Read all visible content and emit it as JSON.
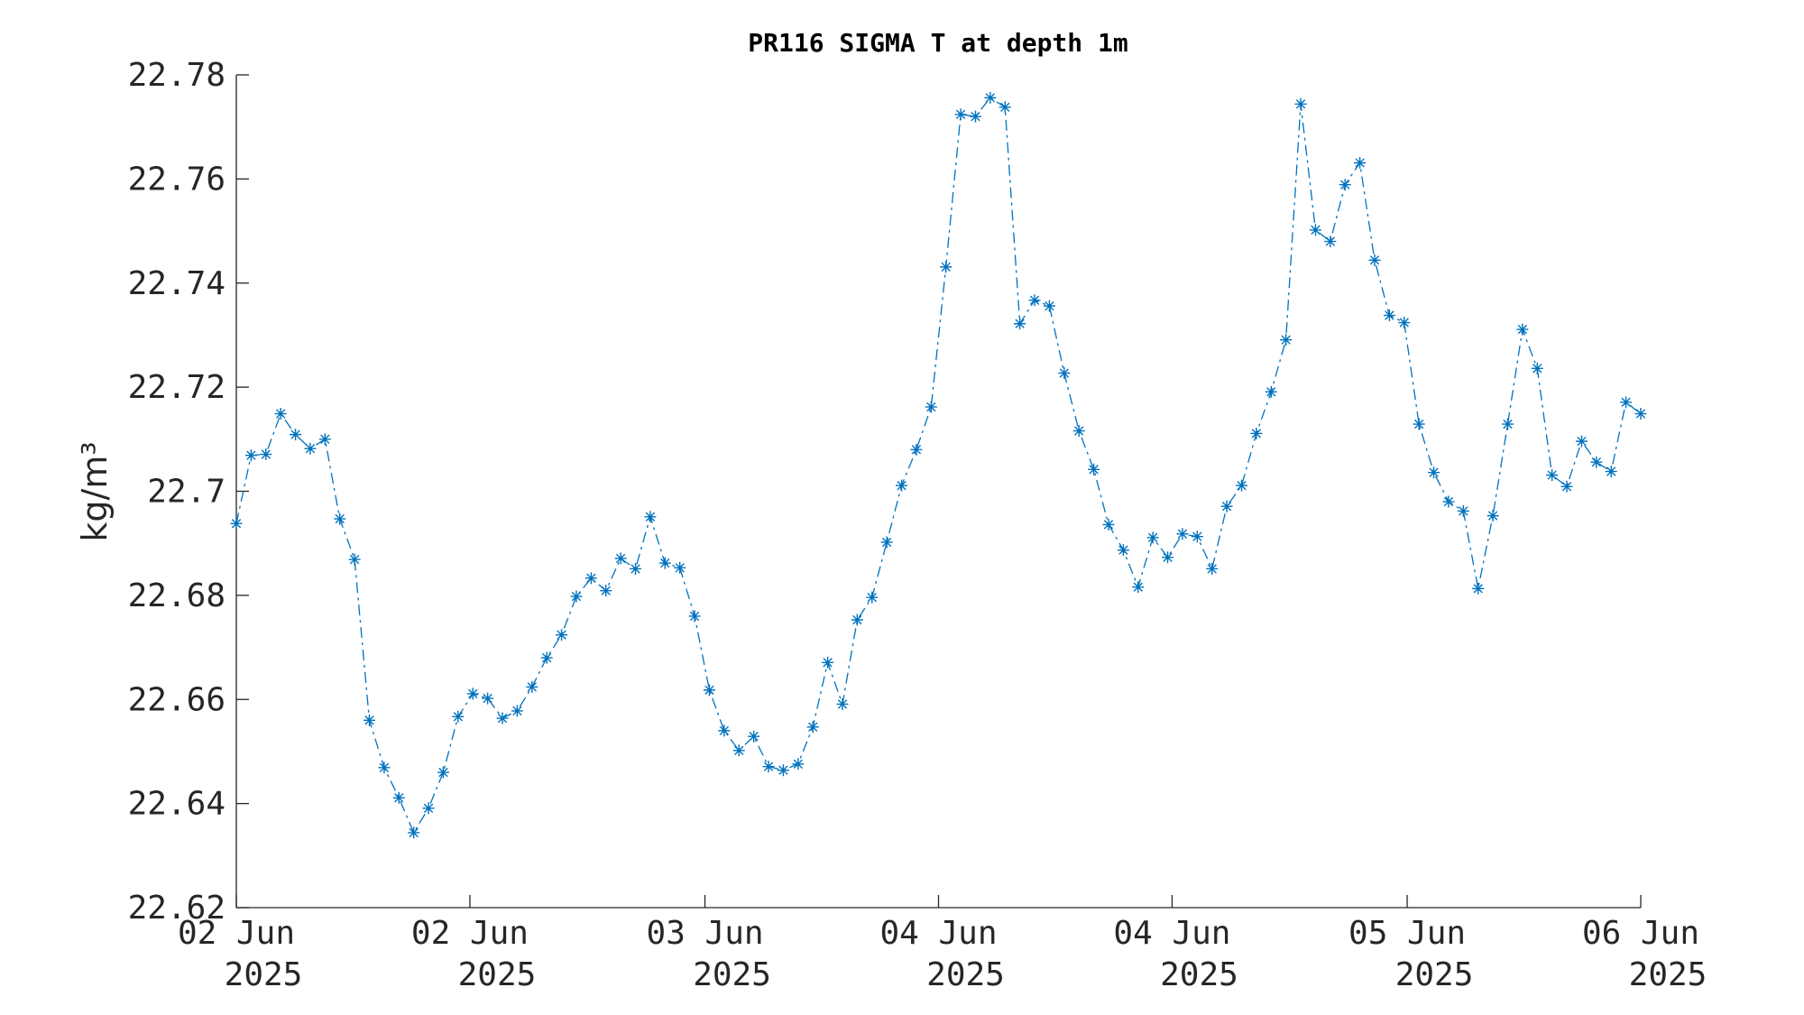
{
  "chart_data": {
    "type": "line",
    "title": "PR116 SIGMA T at depth 1m",
    "ylabel": "kg/m³",
    "x": [
      0,
      1,
      2,
      3,
      4,
      5,
      6,
      7,
      8,
      9,
      10,
      11,
      12,
      13,
      14,
      15,
      16,
      17,
      18,
      19,
      20,
      21,
      22,
      23,
      24,
      25,
      26,
      27,
      28,
      29,
      30,
      31,
      32,
      33,
      34,
      35,
      36,
      37,
      38,
      39,
      40,
      41,
      42,
      43,
      44,
      45,
      46,
      47,
      48,
      49,
      50,
      51,
      52,
      53,
      54,
      55,
      56,
      57,
      58,
      59,
      60,
      61,
      62,
      63,
      64,
      65,
      66,
      67,
      68,
      69,
      70,
      71,
      72,
      73,
      74,
      75,
      76,
      77,
      78,
      79,
      80,
      81,
      82,
      83,
      84,
      85,
      86,
      87,
      88,
      89,
      90,
      91,
      92,
      93,
      94,
      95
    ],
    "series": [
      {
        "name": "SIGMA T",
        "color": "#0072bd",
        "values": [
          22.6938,
          22.7069,
          22.7071,
          22.7149,
          22.7109,
          22.7082,
          22.71,
          22.6947,
          22.6869,
          22.656,
          22.6469,
          22.6411,
          22.6344,
          22.6391,
          22.646,
          22.6567,
          22.6611,
          22.6602,
          22.6564,
          22.6578,
          22.6624,
          22.668,
          22.6724,
          22.6798,
          22.6833,
          22.6809,
          22.6871,
          22.6851,
          22.6951,
          22.6862,
          22.6853,
          22.676,
          22.6618,
          22.654,
          22.6502,
          22.6529,
          22.6471,
          22.6464,
          22.6476,
          22.6547,
          22.6671,
          22.6591,
          22.6753,
          22.6796,
          22.6902,
          22.7011,
          22.708,
          22.7162,
          22.7431,
          22.7724,
          22.772,
          22.7756,
          22.7738,
          22.7322,
          22.7367,
          22.7356,
          22.7227,
          22.7116,
          22.7042,
          22.6936,
          22.6887,
          22.6816,
          22.6911,
          22.6873,
          22.6918,
          22.6913,
          22.6851,
          22.6971,
          22.7011,
          22.7111,
          22.7191,
          22.7291,
          22.7744,
          22.7502,
          22.748,
          22.7589,
          22.7631,
          22.7444,
          22.7338,
          22.7324,
          22.7129,
          22.7036,
          22.698,
          22.6962,
          22.6813,
          22.6953,
          22.7129,
          22.7311,
          22.7236,
          22.7031,
          22.7009,
          22.7096,
          22.7056,
          22.7038,
          22.7171,
          22.7149
        ]
      }
    ],
    "xlim": [
      0,
      95
    ],
    "xticks": [
      {
        "value": 0,
        "label": "02 Jun 2025"
      },
      {
        "value": 15.8,
        "label": "02 Jun 2025"
      },
      {
        "value": 31.7,
        "label": "03 Jun 2025"
      },
      {
        "value": 47.5,
        "label": "04 Jun 2025"
      },
      {
        "value": 63.3,
        "label": "04 Jun 2025"
      },
      {
        "value": 79.2,
        "label": "05 Jun 2025"
      },
      {
        "value": 95,
        "label": "06 Jun 2025"
      }
    ],
    "ylim": [
      22.62,
      22.78
    ],
    "yticks": [
      22.62,
      22.64,
      22.66,
      22.68,
      22.7,
      22.72,
      22.74,
      22.76,
      22.78
    ]
  }
}
